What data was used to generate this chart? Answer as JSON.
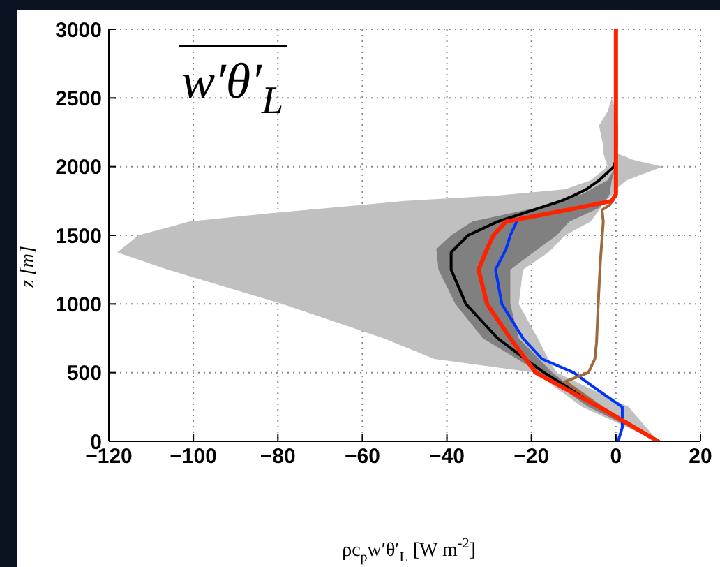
{
  "chart_data": {
    "type": "line",
    "orientation": "horizontal",
    "title": "w′θ′$_{L}$",
    "xlabel": "ρc$_{p}$w′θ′$_{L}$ [W m$^{-2}$]",
    "ylabel": "z [m]",
    "xlim": [
      -120,
      20
    ],
    "xticks": [
      -120,
      -100,
      -80,
      -60,
      -40,
      -20,
      0,
      20
    ],
    "ylim": [
      0,
      3000
    ],
    "yticks": [
      0,
      500,
      1000,
      1500,
      2000,
      2500,
      3000
    ],
    "grid": true,
    "line_style": "solid",
    "marker": "none",
    "series": [
      {
        "color": "#000000",
        "x": [
          0,
          250,
          500,
          600,
          750,
          1000,
          1250,
          1376,
          1500,
          1600,
          1660,
          1750,
          1790,
          1835,
          1900,
          2000,
          2050,
          2100,
          2150,
          2300,
          2400,
          2500
        ],
        "values": [
          10,
          -4,
          -17,
          -21.5,
          -28,
          -35.5,
          -39,
          -39,
          -35,
          -28,
          -22,
          -13,
          -10,
          -7,
          -4,
          -0.5,
          0,
          0,
          0,
          0,
          0,
          0
        ],
        "lower": [
          10,
          -8,
          -19,
          -43,
          -55,
          -79,
          -106,
          -118,
          -113,
          -101,
          -82,
          -50,
          -28,
          -12,
          -6,
          -2,
          -2.5,
          -3,
          -3,
          -4,
          -2,
          -1
        ],
        "upper": [
          10,
          3,
          -14,
          -16,
          -18.5,
          -23,
          -22,
          -16,
          -12,
          -6,
          -4.5,
          -2.5,
          -1,
          0,
          2.5,
          11,
          4,
          0,
          0.5,
          0.5,
          0,
          -1
        ]
      },
      {
        "color": "#0033ff",
        "x": [
          0,
          100,
          250,
          400,
          500,
          600,
          750,
          1000,
          1250,
          1400,
          1500,
          1600
        ],
        "values": [
          0.5,
          1.5,
          1.5,
          -5.5,
          -10,
          -17.5,
          -22,
          -27,
          -28.5,
          -26,
          -25,
          -23.5
        ]
      },
      {
        "color": "#a0693c",
        "x": [
          0,
          250,
          435,
          500,
          600,
          715,
          1000,
          1305,
          1600,
          1685,
          1720,
          1800
        ],
        "values": [
          10,
          -3.5,
          -12,
          -6.5,
          -5,
          -4.6,
          -4.2,
          -3.7,
          -3,
          -3.3,
          -1.5,
          0
        ]
      },
      {
        "color": "#ff2200",
        "x": [
          0,
          250,
          500,
          750,
          1000,
          1250,
          1400,
          1500,
          1600,
          1700,
          1750,
          1800,
          1900,
          2000,
          2500,
          3000
        ],
        "values": [
          10,
          -4,
          -19,
          -25,
          -30.5,
          -32.5,
          -30.5,
          -29,
          -26,
          -9,
          -1,
          0,
          0,
          0,
          0,
          0
        ],
        "lower": [
          10,
          -6.5,
          -18,
          -31.5,
          -38,
          -42,
          -42.5,
          -39,
          -34,
          -19,
          -13,
          -8,
          -2,
          0,
          null,
          null
        ],
        "upper": [
          10,
          -4.5,
          -15,
          -23,
          -25,
          -25,
          -18.5,
          -14,
          -11,
          -4,
          -2.5,
          -1.5,
          -1,
          0,
          null,
          null
        ]
      }
    ]
  }
}
